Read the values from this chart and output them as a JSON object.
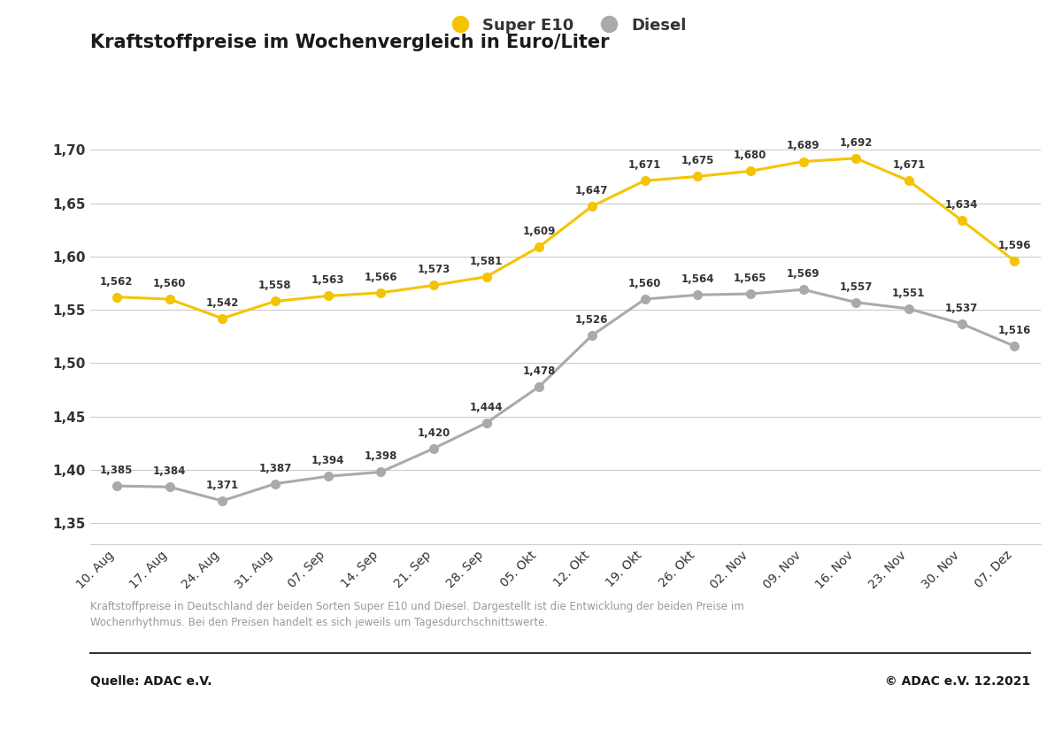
{
  "title": "Kraftstoffpreise im Wochenvergleich in Euro/Liter",
  "x_labels": [
    "10. Aug",
    "17. Aug",
    "24. Aug",
    "31. Aug",
    "07. Sep",
    "14. Sep",
    "21. Sep",
    "28. Sep",
    "05. Okt",
    "12. Okt",
    "19. Okt",
    "26. Okt",
    "02. Nov",
    "09. Nov",
    "16. Nov",
    "23. Nov",
    "30. Nov",
    "07. Dez"
  ],
  "super_e10": [
    1.562,
    1.56,
    1.542,
    1.558,
    1.563,
    1.566,
    1.573,
    1.581,
    1.609,
    1.647,
    1.671,
    1.675,
    1.68,
    1.689,
    1.692,
    1.671,
    1.634,
    1.596
  ],
  "diesel": [
    1.385,
    1.384,
    1.371,
    1.387,
    1.394,
    1.398,
    1.42,
    1.444,
    1.478,
    1.526,
    1.56,
    1.564,
    1.565,
    1.569,
    1.557,
    1.551,
    1.537,
    1.516
  ],
  "super_color": "#F5C400",
  "diesel_color": "#AAAAAA",
  "background_color": "#FFFFFF",
  "grid_color": "#CCCCCC",
  "ylim": [
    1.33,
    1.725
  ],
  "yticks": [
    1.35,
    1.4,
    1.45,
    1.5,
    1.55,
    1.6,
    1.65,
    1.7
  ],
  "legend_super": "Super E10",
  "legend_diesel": "Diesel",
  "footnote": "Kraftstoffpreise in Deutschland der beiden Sorten Super E10 und Diesel. Dargestellt ist die Entwicklung der beiden Preise im\nWochenrhythmus. Bei den Preisen handelt es sich jeweils um Tagesdurchschnittswerte.",
  "source_left": "Quelle: ADAC e.V.",
  "source_right": "© ADAC e.V. 12.2021",
  "label_fontsize": 8.5,
  "title_fontsize": 15,
  "axis_fontsize": 11,
  "legend_fontsize": 13
}
